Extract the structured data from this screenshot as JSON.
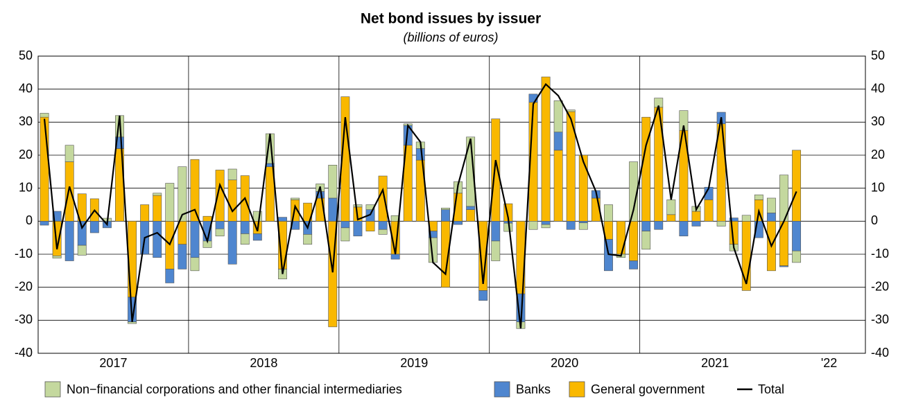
{
  "chart_data": {
    "type": "bar",
    "stacked": true,
    "title": "Net bond issues by issuer",
    "subtitle": "(billions of euros)",
    "categories": [
      null,
      null,
      null,
      null,
      null,
      null,
      null,
      null,
      null,
      null,
      null,
      null,
      null,
      null,
      null,
      null,
      null,
      null,
      null,
      null,
      null,
      null,
      null,
      null,
      null,
      null,
      null,
      null,
      null,
      null,
      null,
      null,
      null,
      null,
      null,
      null,
      null,
      null,
      null,
      null,
      null,
      null,
      null,
      null,
      null,
      null,
      null,
      null,
      null,
      null,
      null,
      null,
      null,
      null,
      null,
      null,
      null,
      null,
      null,
      null,
      null
    ],
    "xlim": [
      -0.5,
      65.5
    ],
    "xticks": [
      {
        "value": 5.5,
        "label": "2017"
      },
      {
        "value": 17.5,
        "label": "2018"
      },
      {
        "value": 29.5,
        "label": "2019"
      },
      {
        "value": 41.5,
        "label": "2020"
      },
      {
        "value": 53.5,
        "label": "2021"
      },
      {
        "value": 62.6,
        "label": "'22"
      }
    ],
    "xgrid": [
      11.5,
      23.5,
      35.5,
      47.5
    ],
    "ylim": [
      -40,
      50
    ],
    "yticks": [
      -40,
      -30,
      -20,
      -10,
      0,
      10,
      20,
      30,
      40,
      50
    ],
    "grid": true,
    "legend": "bottom",
    "series": [
      {
        "name": "Non−financial corporations and other financial intermediaries",
        "color": "#c4d89e",
        "values": [
          1.2,
          -0.7,
          5,
          -3,
          0,
          0.9,
          6.5,
          -0.5,
          0,
          0.7,
          11.5,
          16.5,
          -4,
          -2,
          -2.2,
          3.3,
          -3.2,
          3,
          9,
          -3,
          0.5,
          -3,
          2.3,
          10,
          -4,
          0.7,
          1.5,
          -1.5,
          1.7,
          0.5,
          2,
          -7.5,
          0.5,
          3.5,
          21,
          0,
          -6,
          -2.5,
          -2,
          -2.5,
          -1,
          9.5,
          0.5,
          -2,
          0,
          5,
          -1,
          18,
          -5.5,
          2.8,
          4.5,
          6,
          1.5,
          0,
          -1.5,
          -2,
          1.8,
          1.5,
          4.5,
          14,
          -3.5
        ]
      },
      {
        "name": "Banks",
        "color": "#4f86cf",
        "values": [
          -1.2,
          3,
          -12,
          -7.3,
          -3.5,
          -2,
          3.5,
          -7.5,
          -10,
          -11,
          -4.2,
          -7.5,
          -11,
          -6,
          -2.3,
          -13,
          -3.8,
          -2,
          1,
          1.2,
          -2.5,
          -4,
          2,
          7,
          -2,
          -4.5,
          3.5,
          -2.5,
          -1.5,
          6,
          3.5,
          -2,
          3.5,
          -1,
          1,
          -3,
          -6,
          -0.6,
          -8.5,
          2.5,
          -1,
          5.5,
          -2.5,
          -0.5,
          2.3,
          -9.5,
          0,
          -2.5,
          -3,
          -2.5,
          0,
          -4.5,
          -1.5,
          3.8,
          3.5,
          1,
          0,
          -5,
          2.5,
          -0.3,
          -9
        ]
      },
      {
        "name": "General government",
        "color": "#f9b800",
        "values": [
          31.5,
          -10.5,
          18,
          8.3,
          6.8,
          0,
          22,
          -23,
          5,
          7.8,
          -14.5,
          -7,
          18.7,
          1.5,
          15.5,
          12.5,
          13.8,
          -3.8,
          16.5,
          -14.5,
          6.5,
          5.5,
          7,
          -32,
          37.7,
          4.3,
          -3,
          13.7,
          -10,
          23,
          18.5,
          -3,
          -20,
          8.5,
          3.5,
          -21,
          31,
          5.3,
          -22,
          36,
          43.7,
          21.5,
          33.2,
          20,
          7,
          -5.5,
          -10,
          -12,
          31.5,
          34.5,
          2,
          27.5,
          3,
          6.5,
          29.5,
          -7,
          -21,
          6.5,
          -15,
          -13.5,
          21.5
        ]
      },
      {
        "name": "Total",
        "type": "line",
        "color": "#000000",
        "values": [
          31,
          -8.5,
          10.5,
          -2,
          3.3,
          -1,
          32,
          -30.5,
          -5,
          -3.5,
          -7,
          2,
          3.5,
          -6,
          11,
          3,
          7,
          -3,
          26.5,
          -16,
          4.5,
          -2,
          10.5,
          -15.5,
          31.5,
          0.5,
          2,
          9.5,
          -10,
          29,
          24,
          -12.5,
          -16,
          11,
          25,
          -19,
          18.5,
          1,
          -32.5,
          35.5,
          41.5,
          38,
          31,
          18,
          9,
          -10,
          -10.5,
          3.5,
          23,
          35,
          6.5,
          29,
          3.5,
          10,
          31.5,
          -8,
          -19,
          3,
          -7.5,
          0,
          9
        ]
      }
    ]
  }
}
